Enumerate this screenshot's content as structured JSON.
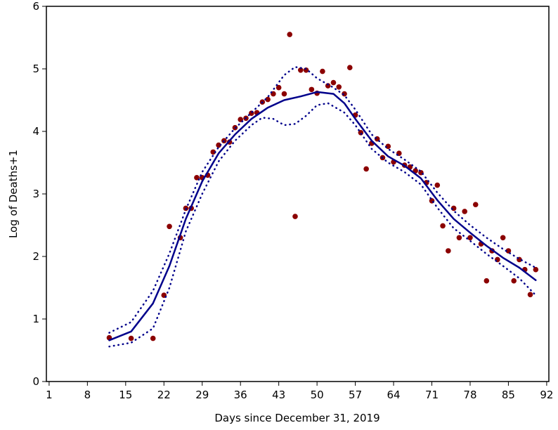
{
  "chart_data": {
    "type": "scatter",
    "x_label": "Days since December 31, 2019",
    "y_label": "Log of Deaths+1",
    "xlim": [
      0.5,
      92.4
    ],
    "ylim": [
      0,
      6
    ],
    "xticks": [
      1,
      8,
      15,
      22,
      29,
      36,
      43,
      50,
      57,
      64,
      71,
      78,
      85,
      92
    ],
    "yticks": [
      0,
      1,
      2,
      3,
      4,
      5,
      6
    ],
    "grid": false,
    "series": [
      {
        "type": "scatter",
        "color": "#8b0000",
        "x": [
          12,
          16,
          20,
          22,
          23,
          25,
          26,
          27,
          28,
          29,
          30,
          31,
          32,
          33,
          34,
          35,
          36,
          37,
          38,
          39,
          40,
          41,
          42,
          43,
          44,
          45,
          46,
          47,
          48,
          49,
          50,
          51,
          52,
          53,
          54,
          55,
          56,
          57,
          58,
          59,
          60,
          61,
          62,
          63,
          64,
          65,
          66,
          67,
          68,
          69,
          70,
          71,
          72,
          73,
          74,
          75,
          76,
          77,
          78,
          79,
          80,
          81,
          82,
          83,
          84,
          85,
          86,
          87,
          88,
          89,
          90
        ],
        "values": [
          0.7,
          0.69,
          0.69,
          1.38,
          2.48,
          2.3,
          2.77,
          2.77,
          3.26,
          3.26,
          3.3,
          3.67,
          3.78,
          3.85,
          3.83,
          4.06,
          4.19,
          4.21,
          4.29,
          4.3,
          4.47,
          4.51,
          4.6,
          4.7,
          4.6,
          5.55,
          2.64,
          4.98,
          4.98,
          4.67,
          4.61,
          4.96,
          4.73,
          4.78,
          4.71,
          4.6,
          5.02,
          4.26,
          3.98,
          3.4,
          3.81,
          3.88,
          3.58,
          3.76,
          3.51,
          3.65,
          3.46,
          3.43,
          3.37,
          3.34,
          3.18,
          2.89,
          3.14,
          2.49,
          2.09,
          2.77,
          2.3,
          2.72,
          2.3,
          2.83,
          2.2,
          1.61,
          2.09,
          1.95,
          2.3,
          2.09,
          1.61,
          1.95,
          1.79,
          1.39,
          1.79
        ]
      },
      {
        "type": "line",
        "style": "solid",
        "color": "#00008b",
        "x": [
          12,
          16,
          20,
          23,
          26,
          29,
          32,
          35,
          38,
          41,
          44,
          47,
          50,
          53,
          55,
          57,
          60,
          63,
          66,
          69,
          72,
          75,
          78,
          81,
          84,
          87,
          90
        ],
        "values": [
          0.66,
          0.8,
          1.25,
          1.85,
          2.6,
          3.2,
          3.65,
          3.95,
          4.2,
          4.38,
          4.5,
          4.56,
          4.63,
          4.6,
          4.45,
          4.2,
          3.85,
          3.6,
          3.45,
          3.25,
          2.9,
          2.6,
          2.38,
          2.17,
          1.98,
          1.82,
          1.62
        ]
      },
      {
        "type": "line",
        "style": "dotted",
        "color": "#00008b",
        "x": [
          12,
          16,
          20,
          23,
          26,
          29,
          32,
          35,
          38,
          41,
          44,
          46,
          48,
          50,
          53,
          55,
          57,
          60,
          63,
          66,
          69,
          72,
          75,
          78,
          81,
          84,
          87,
          90
        ],
        "values": [
          0.78,
          0.95,
          1.45,
          2.05,
          2.75,
          3.35,
          3.75,
          4.05,
          4.3,
          4.55,
          4.9,
          5.03,
          5.0,
          4.85,
          4.7,
          4.58,
          4.35,
          3.95,
          3.72,
          3.55,
          3.36,
          3.02,
          2.73,
          2.5,
          2.3,
          2.12,
          1.96,
          1.82
        ]
      },
      {
        "type": "line",
        "style": "dotted",
        "color": "#00008b",
        "x": [
          12,
          16,
          20,
          23,
          26,
          29,
          32,
          35,
          38,
          40,
          42,
          44,
          46,
          48,
          50,
          52,
          55,
          57,
          60,
          63,
          66,
          69,
          72,
          75,
          78,
          81,
          84,
          87,
          90
        ],
        "values": [
          0.56,
          0.62,
          0.85,
          1.5,
          2.4,
          3.0,
          3.52,
          3.85,
          4.1,
          4.22,
          4.2,
          4.1,
          4.12,
          4.25,
          4.42,
          4.45,
          4.3,
          4.1,
          3.72,
          3.5,
          3.35,
          3.15,
          2.78,
          2.45,
          2.25,
          2.04,
          1.85,
          1.65,
          1.38
        ]
      }
    ]
  }
}
